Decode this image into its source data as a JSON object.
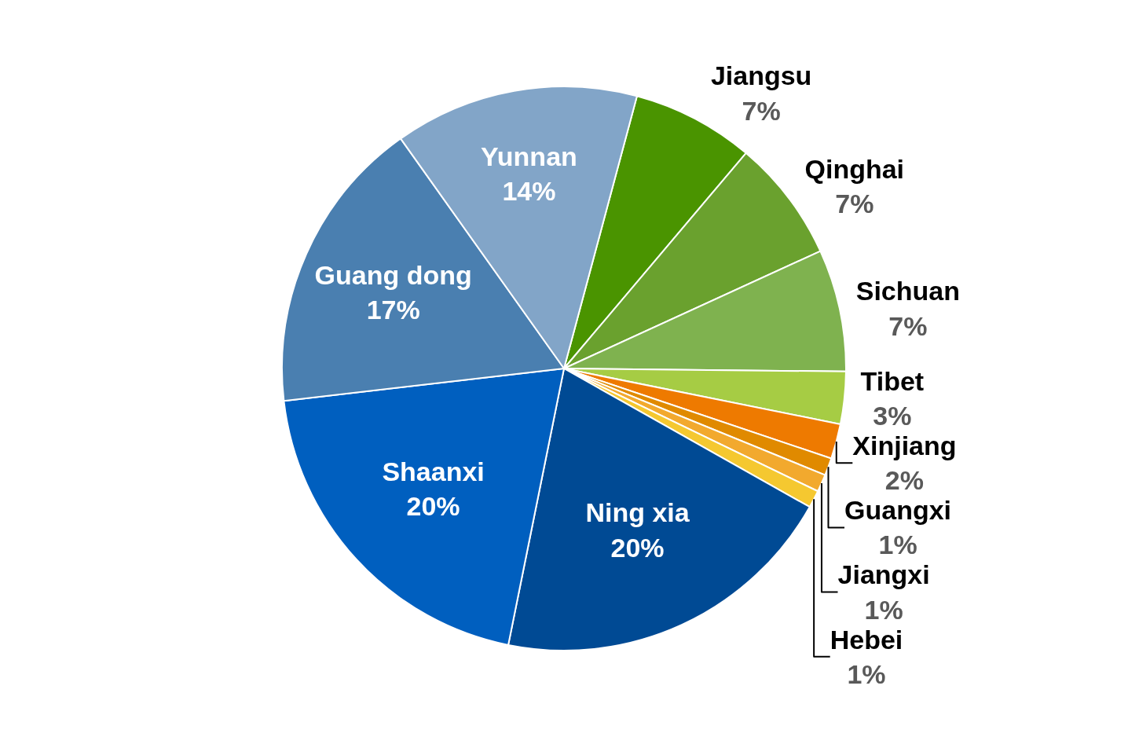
{
  "chart_data": {
    "type": "pie",
    "categories": [
      "Jiangsu",
      "Qinghai",
      "Sichuan",
      "Tibet",
      "Xinjiang",
      "Guangxi",
      "Jiangxi",
      "Hebei",
      "Ning xia",
      "Shaanxi",
      "Guang dong",
      "Yunnan"
    ],
    "values": [
      7,
      7,
      7,
      3,
      2,
      1,
      1,
      1,
      20,
      20,
      17,
      14
    ],
    "value_labels": [
      "7%",
      "7%",
      "7%",
      "3%",
      "2%",
      "1%",
      "1%",
      "1%",
      "20%",
      "20%",
      "17%",
      "14%"
    ],
    "colors": [
      "#4a9400",
      "#6aa12e",
      "#7fb24f",
      "#a6cc44",
      "#ee7a00",
      "#e08a00",
      "#f2a92e",
      "#f5c830",
      "#004a94",
      "#005fbf",
      "#4a7fb0",
      "#82a5c8"
    ],
    "legend": false
  }
}
